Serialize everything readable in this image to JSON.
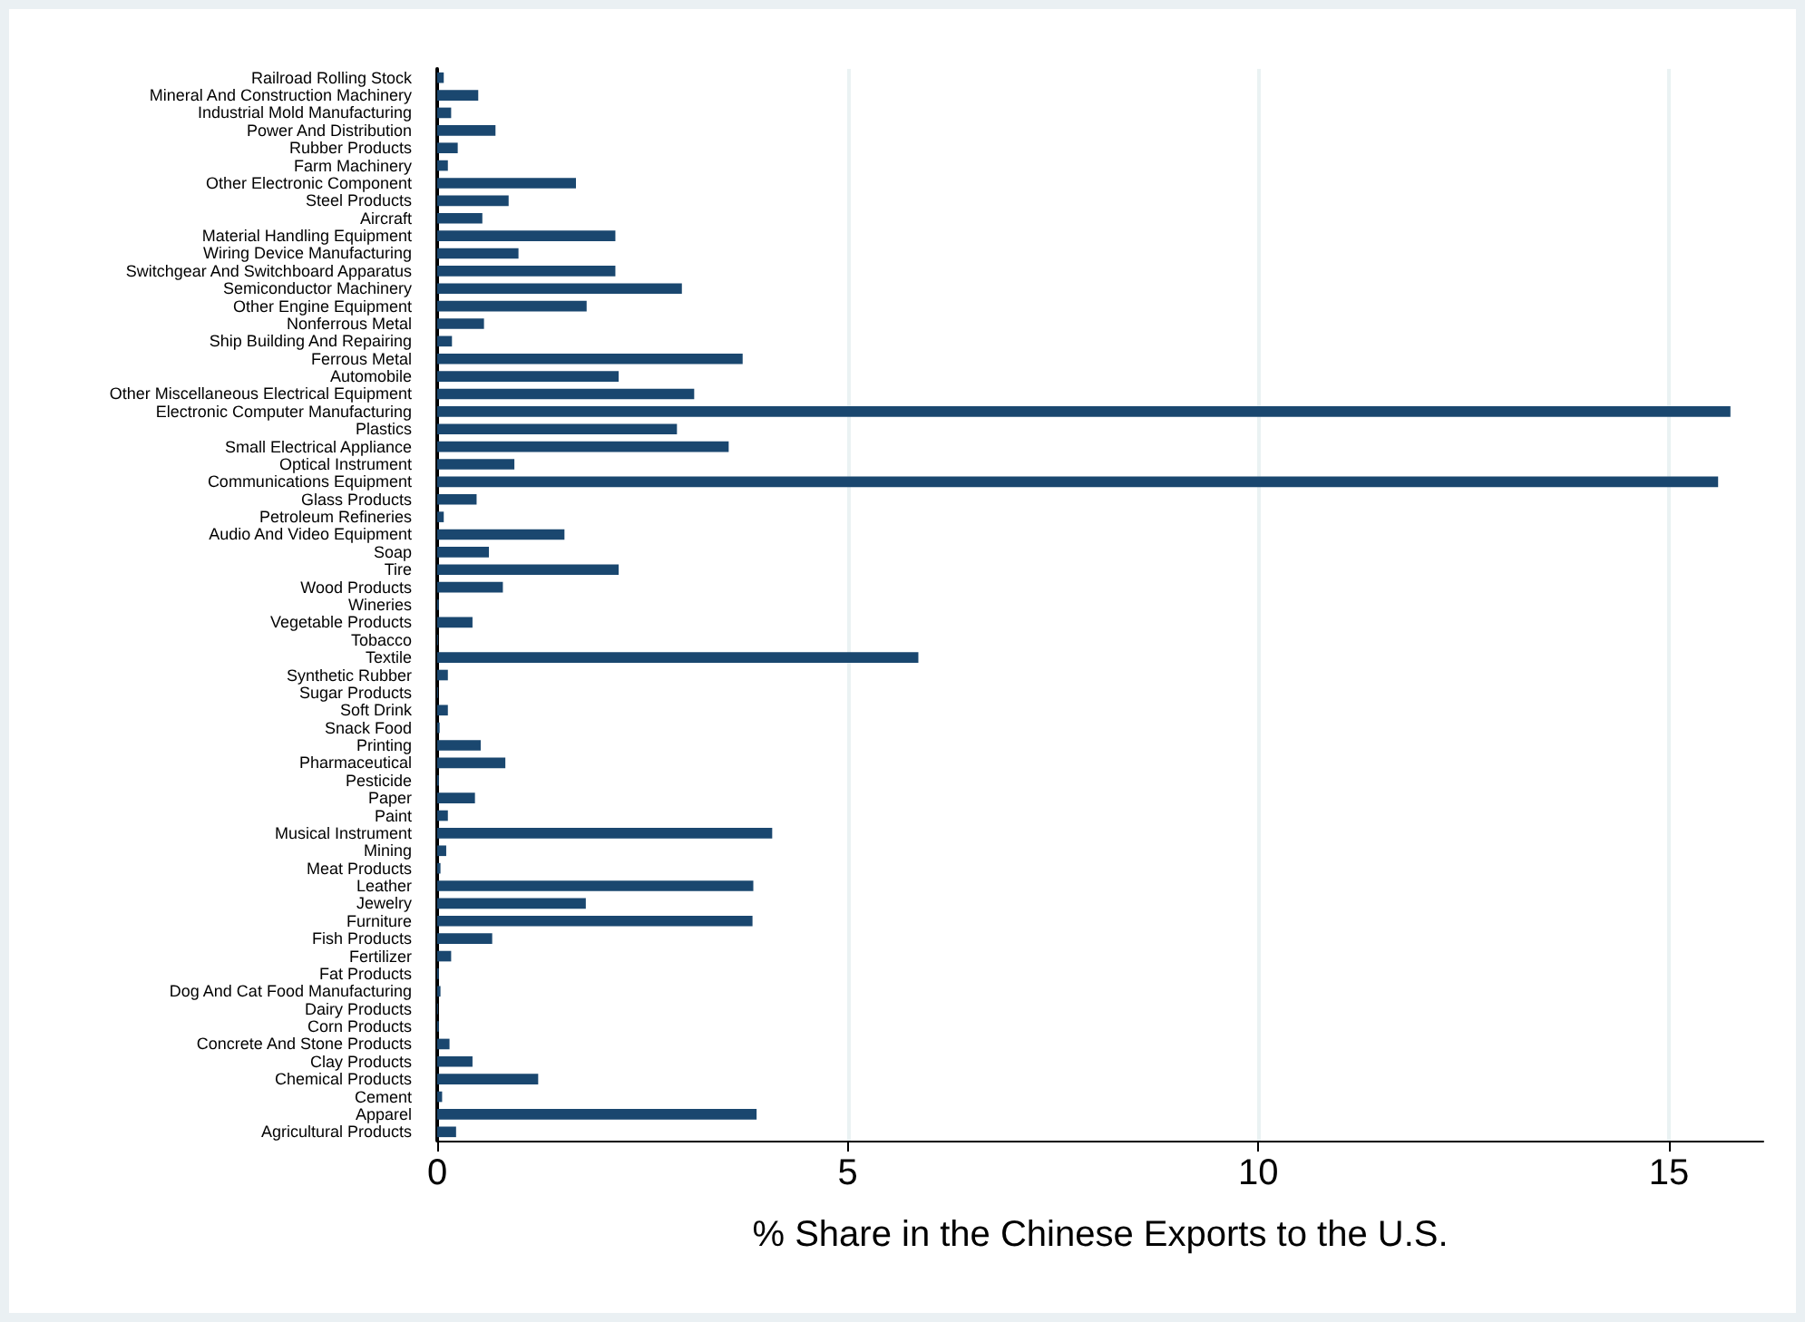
{
  "chart_data": {
    "type": "bar",
    "orientation": "horizontal",
    "xlabel": "% Share in the Chinese Exports to the U.S.",
    "categories": [
      "Railroad Rolling Stock",
      "Mineral And Construction Machinery",
      "Industrial Mold Manufacturing",
      "Power And Distribution",
      "Rubber Products",
      "Farm Machinery",
      "Other Electronic Component",
      "Steel Products",
      "Aircraft",
      "Material Handling Equipment",
      "Wiring Device Manufacturing",
      "Switchgear And Switchboard Apparatus",
      "Semiconductor Machinery",
      "Other Engine Equipment",
      "Nonferrous Metal",
      "Ship Building And Repairing",
      "Ferrous Metal",
      "Automobile",
      "Other Miscellaneous Electrical Equipment",
      "Electronic Computer Manufacturing",
      "Plastics",
      "Small Electrical Appliance",
      "Optical Instrument",
      "Communications Equipment",
      "Glass Products",
      "Petroleum Refineries",
      "Audio And Video Equipment",
      "Soap",
      "Tire",
      "Wood Products",
      "Wineries",
      "Vegetable Products",
      "Tobacco",
      "Textile",
      "Synthetic Rubber",
      "Sugar Products",
      "Soft Drink",
      "Snack Food",
      "Printing",
      "Pharmaceutical",
      "Pesticide",
      "Paper",
      "Paint",
      "Musical Instrument",
      "Mining",
      "Meat Products",
      "Leather",
      "Jewelry",
      "Furniture",
      "Fish Products",
      "Fertilizer",
      "Fat Products",
      "Dog And Cat Food Manufacturing",
      "Dairy Products",
      "Corn Products",
      "Concrete And Stone Products",
      "Clay Products",
      "Chemical Products",
      "Cement",
      "Apparel",
      "Agricultural Products"
    ],
    "values": [
      0.08,
      0.5,
      0.17,
      0.71,
      0.25,
      0.13,
      1.69,
      0.87,
      0.55,
      2.17,
      0.99,
      2.17,
      2.98,
      1.82,
      0.57,
      0.18,
      3.72,
      2.21,
      3.13,
      15.75,
      2.92,
      3.55,
      0.94,
      15.6,
      0.48,
      0.08,
      1.55,
      0.63,
      2.21,
      0.8,
      0.02,
      0.43,
      0.01,
      5.86,
      0.13,
      0.01,
      0.13,
      0.03,
      0.53,
      0.83,
      0.02,
      0.46,
      0.13,
      4.08,
      0.11,
      0.04,
      3.85,
      1.81,
      3.84,
      0.67,
      0.17,
      0.02,
      0.04,
      0.01,
      0.02,
      0.15,
      0.43,
      1.23,
      0.06,
      3.89,
      0.23
    ],
    "color": "#1a476f",
    "xlim": [
      0,
      16.15
    ],
    "xticks": [
      0,
      5,
      10,
      15
    ],
    "grid": "x"
  }
}
